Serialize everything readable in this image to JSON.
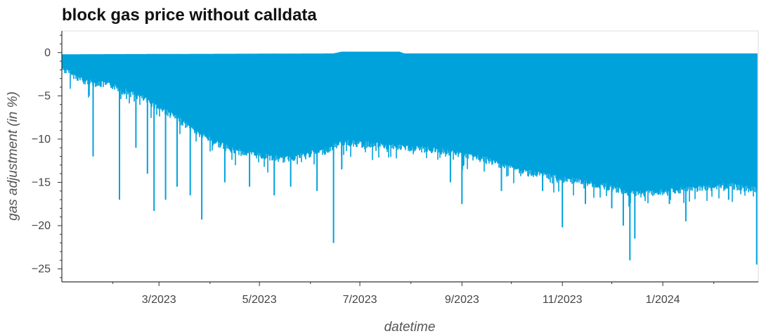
{
  "chart_data": {
    "type": "line",
    "title": "block gas price without calldata",
    "xlabel": "datetime",
    "ylabel": "gas adjustment (in %)",
    "x_range": [
      "2023-01-01",
      "2024-02-28"
    ],
    "ylim": [
      -26.5,
      2.5
    ],
    "x_ticks": [
      {
        "date": "2023-03-01",
        "label": "3/2023"
      },
      {
        "date": "2023-05-01",
        "label": "5/2023"
      },
      {
        "date": "2023-07-01",
        "label": "7/2023"
      },
      {
        "date": "2023-09-01",
        "label": "9/2023"
      },
      {
        "date": "2023-11-01",
        "label": "11/2023"
      },
      {
        "date": "2024-01-01",
        "label": "1/2024"
      }
    ],
    "y_ticks": [
      0,
      -5,
      -10,
      -15,
      -20,
      -25
    ],
    "y_tick_labels": [
      "0",
      "−5",
      "−10",
      "−15",
      "−20",
      "−25"
    ],
    "grid": false,
    "series": [
      {
        "color": "#00a2dc",
        "upper": [
          {
            "x": "2023-01-01",
            "y": -0.2
          },
          {
            "x": "2023-06-15",
            "y": -0.1
          },
          {
            "x": "2023-06-20",
            "y": 0.1
          },
          {
            "x": "2023-07-25",
            "y": 0.1
          },
          {
            "x": "2023-07-28",
            "y": -0.1
          },
          {
            "x": "2024-02-26",
            "y": -0.1
          }
        ],
        "lower": [
          {
            "x": "2023-01-01",
            "y": -1.5
          },
          {
            "x": "2023-01-15",
            "y": -3.0
          },
          {
            "x": "2023-02-01",
            "y": -3.5
          },
          {
            "x": "2023-02-20",
            "y": -5.0
          },
          {
            "x": "2023-03-10",
            "y": -7.0
          },
          {
            "x": "2023-03-25",
            "y": -9.0
          },
          {
            "x": "2023-04-15",
            "y": -11.0
          },
          {
            "x": "2023-05-15",
            "y": -12.0
          },
          {
            "x": "2023-06-10",
            "y": -11.0
          },
          {
            "x": "2023-06-20",
            "y": -10.0
          },
          {
            "x": "2023-07-20",
            "y": -10.5
          },
          {
            "x": "2023-08-20",
            "y": -11.0
          },
          {
            "x": "2023-09-15",
            "y": -12.0
          },
          {
            "x": "2023-10-10",
            "y": -13.5
          },
          {
            "x": "2023-11-10",
            "y": -14.5
          },
          {
            "x": "2023-11-25",
            "y": -15.0
          },
          {
            "x": "2023-12-15",
            "y": -16.0
          },
          {
            "x": "2024-01-15",
            "y": -15.5
          },
          {
            "x": "2024-02-10",
            "y": -15.0
          },
          {
            "x": "2024-02-26",
            "y": -15.5
          }
        ],
        "spikes": [
          {
            "x": "2023-01-20",
            "y": -12.0
          },
          {
            "x": "2023-02-05",
            "y": -17.0
          },
          {
            "x": "2023-02-15",
            "y": -11.0
          },
          {
            "x": "2023-02-22",
            "y": -14.0
          },
          {
            "x": "2023-02-26",
            "y": -18.3
          },
          {
            "x": "2023-03-05",
            "y": -17.0
          },
          {
            "x": "2023-03-12",
            "y": -15.5
          },
          {
            "x": "2023-03-20",
            "y": -16.5
          },
          {
            "x": "2023-03-27",
            "y": -19.3
          },
          {
            "x": "2023-04-10",
            "y": -15.0
          },
          {
            "x": "2023-04-25",
            "y": -15.5
          },
          {
            "x": "2023-05-10",
            "y": -16.5
          },
          {
            "x": "2023-05-20",
            "y": -15.5
          },
          {
            "x": "2023-06-05",
            "y": -16.0
          },
          {
            "x": "2023-06-15",
            "y": -22.0
          },
          {
            "x": "2023-06-20",
            "y": -13.5
          },
          {
            "x": "2023-08-25",
            "y": -15.0
          },
          {
            "x": "2023-09-01",
            "y": -17.5
          },
          {
            "x": "2023-09-25",
            "y": -16.0
          },
          {
            "x": "2023-10-20",
            "y": -16.0
          },
          {
            "x": "2023-11-01",
            "y": -20.2
          },
          {
            "x": "2023-11-15",
            "y": -17.5
          },
          {
            "x": "2023-12-01",
            "y": -18.0
          },
          {
            "x": "2023-12-08",
            "y": -20.0
          },
          {
            "x": "2023-12-12",
            "y": -24.0
          },
          {
            "x": "2023-12-15",
            "y": -21.5
          },
          {
            "x": "2024-01-05",
            "y": -17.5
          },
          {
            "x": "2024-01-15",
            "y": -19.5
          },
          {
            "x": "2024-02-10",
            "y": -17.0
          },
          {
            "x": "2024-02-27",
            "y": -24.5
          }
        ]
      }
    ]
  }
}
